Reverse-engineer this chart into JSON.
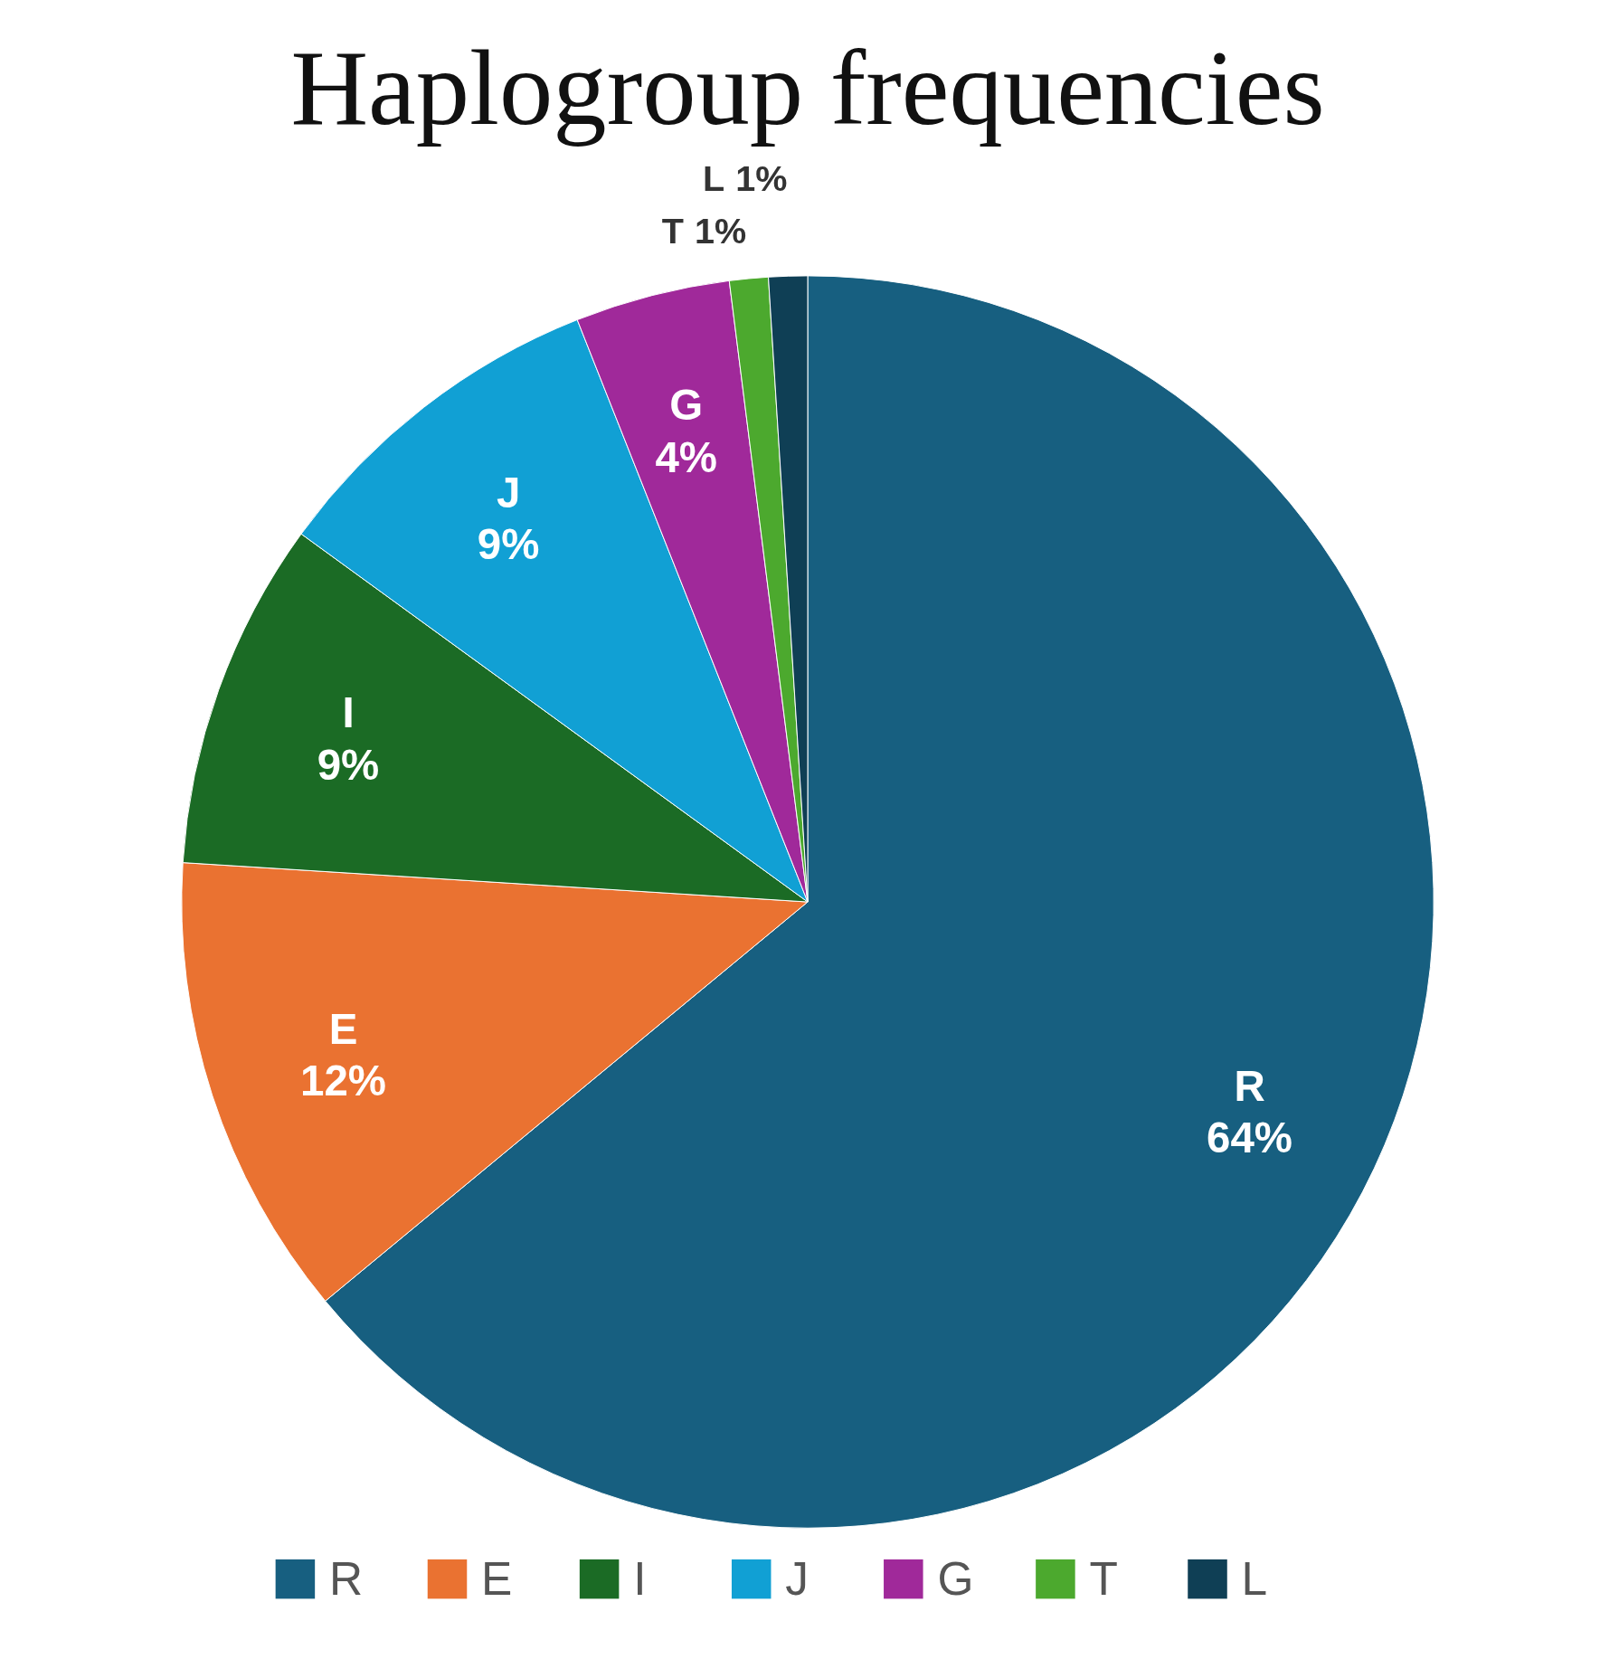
{
  "chart_data": {
    "type": "pie",
    "title": "Haplogroup frequencies",
    "categories": [
      "R",
      "E",
      "I",
      "J",
      "G",
      "T",
      "L"
    ],
    "values": [
      64,
      12,
      9,
      9,
      4,
      1,
      1
    ],
    "value_labels": [
      "64%",
      "12%",
      "9%",
      "9%",
      "4%",
      "1%",
      "1%"
    ],
    "colors": [
      "#175f80",
      "#ea7231",
      "#1b6b25",
      "#11a0d4",
      "#a0299a",
      "#4ca92e",
      "#0f3f55"
    ],
    "legend": "bottom"
  }
}
